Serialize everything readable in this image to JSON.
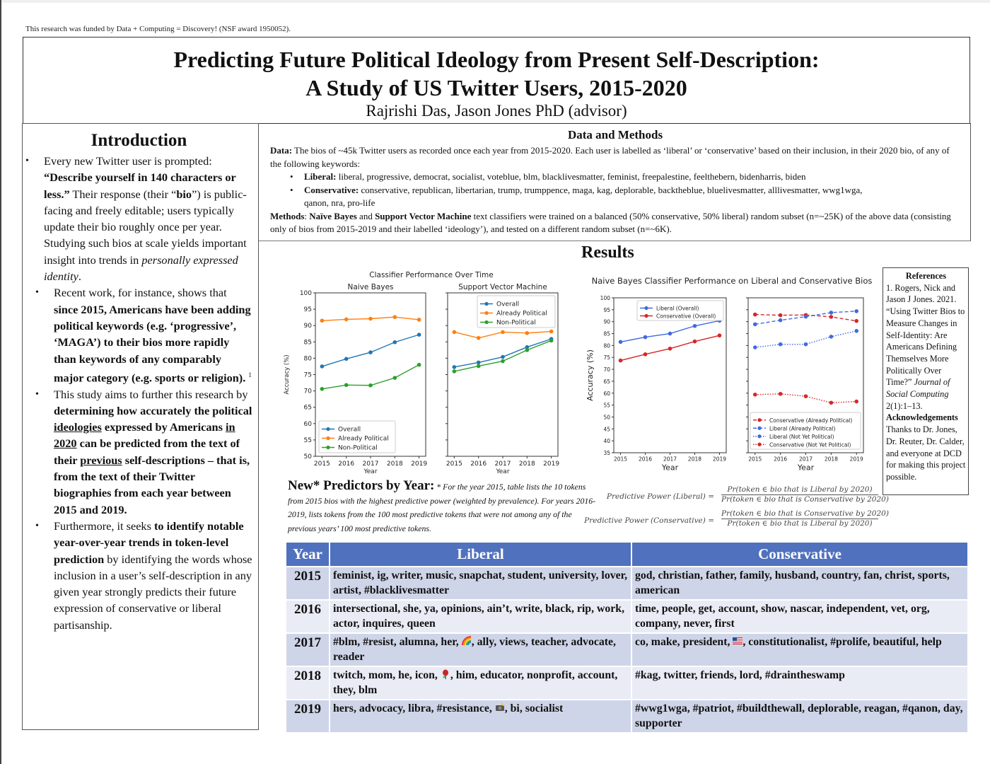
{
  "funding_note": "This research was funded by Data + Computing = Discovery!  (NSF award 1950052).",
  "header": {
    "title_line1": "Predicting Future Political Ideology from Present Self-Description:",
    "title_line2": "A Study of  US Twitter Users, 2015-2020",
    "authors": "Rajrishi Das, Jason Jones PhD (advisor)"
  },
  "introduction": {
    "title": "Introduction",
    "b1": {
      "t1": "Every new Twitter user is prompted: ",
      "b1": "“Describe yourself  in 140 characters or less.”",
      "t2": " Their response (their “",
      "b2": "bio",
      "t3": "”) is public-facing and freely editable; users typically update their bio roughly once per year. Studying such bios at scale yields important insight into trends in ",
      "i1": "personally expressed identity",
      "t4": "."
    },
    "b2": {
      "t1": "Recent work, for instance, shows that ",
      "b1": "since 2015, Americans have been adding political keywords (e.g. ‘progressive’, ‘MAGA’) to their bios more rapidly than keywords of  any comparably major category (e.g. sports or religion).",
      "sup": "1"
    },
    "b3": {
      "t1": "This study aims to further this research by ",
      "b1": "determining how accurately the political ",
      "u1": "ideologies",
      "b2": " expressed by Americans ",
      "u2": "in 2020",
      "b3": " can be predicted from the text of their ",
      "u3": "previous",
      "b4": " self-descriptions – that is, from the text of  their Twitter biographies from each year between 2015 and 2019."
    },
    "b4": {
      "t1": "Furthermore, it seeks ",
      "b1": "to identify notable year-over-year trends in token-level prediction",
      "t2": " by identifying the words whose inclusion in a user’s self-description in any given year strongly predicts their future expression of conservative or liberal partisanship."
    }
  },
  "data_methods": {
    "title": "Data and Methods",
    "data_label": "Data:",
    "data_text": " The bios of  ~45k Twitter users as recorded once each year from 2015-2020. Each user is labelled as ‘liberal’ or ‘conservative’ based on their inclusion, in their 2020 bio, of any of the following keywords:",
    "liberal_label": "Liberal:",
    "liberal_keywords": " liberal, progressive, democrat, socialist, voteblue, blm, blacklivesmatter, feminist, freepalestine, feelthebern, bidenharris, biden",
    "conservative_label": "Conservative:",
    "conservative_keywords": " conservative, republican, libertarian, trump, trumppence, maga, kag, deplorable, backtheblue, bluelivesmatter, alllivesmatter, wwg1wga,",
    "conservative_keywords_cont": "qanon, nra, pro-life",
    "methods_label": "Methods",
    "methods_t1": ": ",
    "methods_b1": "Naïve Bayes",
    "methods_t2": " and ",
    "methods_b2": "Support Vector Machine",
    "methods_t3": " text classifiers were trained on a balanced (50% conservative, 50% liberal) random subset (n=~25K) of the above data (consisting only of  bios from 2015-2019 and their labelled ‘ideology’), and tested on a different random subset (n=~6K)."
  },
  "results": {
    "title": "Results"
  },
  "chart_data": [
    {
      "type": "line",
      "title": "Classifier Performance Over Time",
      "subtitle": "Naive Bayes",
      "xlabel": "Year",
      "ylabel": "Accuracy (%)",
      "x": [
        2015,
        2016,
        2017,
        2018,
        2019
      ],
      "ylim": [
        50,
        100
      ],
      "yticks": [
        50,
        55,
        60,
        65,
        70,
        75,
        80,
        85,
        90,
        95,
        100
      ],
      "legend_position": "lower left",
      "grid": false,
      "series": [
        {
          "name": "Overall",
          "color": "#1f77b4",
          "style": "solid",
          "values": [
            77.5,
            79.8,
            81.8,
            84.9,
            87.2
          ]
        },
        {
          "name": "Already Political",
          "color": "#ff7f0e",
          "style": "solid",
          "values": [
            91.5,
            91.9,
            92.1,
            92.6,
            91.8
          ]
        },
        {
          "name": "Non-Political",
          "color": "#2ca02c",
          "style": "solid",
          "values": [
            70.6,
            71.8,
            71.7,
            74.0,
            78.0
          ]
        }
      ]
    },
    {
      "type": "line",
      "title": "Classifier Performance Over Time",
      "subtitle": "Support Vector Machine",
      "xlabel": "Year",
      "ylabel": "",
      "x": [
        2015,
        2016,
        2017,
        2018,
        2019
      ],
      "ylim": [
        50,
        100
      ],
      "legend_position": "upper right",
      "grid": false,
      "series": [
        {
          "name": "Overall",
          "color": "#1f77b4",
          "style": "solid",
          "values": [
            77.3,
            78.7,
            80.4,
            83.4,
            85.9
          ]
        },
        {
          "name": "Already Political",
          "color": "#ff7f0e",
          "style": "solid",
          "values": [
            88.0,
            86.2,
            88.0,
            87.7,
            88.2
          ]
        },
        {
          "name": "Non-Political",
          "color": "#2ca02c",
          "style": "solid",
          "values": [
            76.0,
            77.6,
            79.1,
            82.5,
            85.4
          ]
        }
      ]
    },
    {
      "type": "line",
      "title": "Naive Bayes Classifier Performance on Liberal and Conservative Bios",
      "xlabel": "Year",
      "ylabel": "Accuracy (%)",
      "x": [
        2015,
        2016,
        2017,
        2018,
        2019
      ],
      "ylim": [
        35,
        100
      ],
      "yticks": [
        35,
        40,
        45,
        50,
        55,
        60,
        65,
        70,
        75,
        80,
        85,
        90,
        95,
        100
      ],
      "legend_position": "upper right",
      "grid": false,
      "series": [
        {
          "name": "Liberal (Overall)",
          "color": "#4169e1",
          "style": "solid",
          "values": [
            81.5,
            83.5,
            85.0,
            88.2,
            90.4
          ]
        },
        {
          "name": "Conservative (Overall)",
          "color": "#d62728",
          "style": "solid",
          "values": [
            73.7,
            76.3,
            78.7,
            81.7,
            84.2
          ]
        }
      ]
    },
    {
      "type": "line",
      "title": "Naive Bayes Classifier Performance on Liberal and Conservative Bios",
      "xlabel": "Year",
      "ylabel": "",
      "x": [
        2015,
        2016,
        2017,
        2018,
        2019
      ],
      "ylim": [
        35,
        100
      ],
      "legend_position": "lower right",
      "grid": false,
      "series": [
        {
          "name": "Conservative (Already Political)",
          "color": "#d62728",
          "style": "dashed",
          "values": [
            93.0,
            92.7,
            92.8,
            92.0,
            90.3
          ]
        },
        {
          "name": "Liberal (Already Political)",
          "color": "#4169e1",
          "style": "dashed",
          "values": [
            88.9,
            90.6,
            92.1,
            93.8,
            94.4
          ]
        },
        {
          "name": "Liberal (Not Yet Political)",
          "color": "#4169e1",
          "style": "dotted",
          "values": [
            79.2,
            80.5,
            80.5,
            83.7,
            86.1
          ]
        },
        {
          "name": "Conservative (Not Yet Political)",
          "color": "#d62728",
          "style": "dotted",
          "values": [
            59.4,
            59.7,
            58.7,
            56.0,
            56.5
          ]
        }
      ]
    }
  ],
  "references": {
    "title": "References",
    "ref1_text": "1. Rogers, Nick and Jason J Jones. 2021. “Using Twitter Bios to Measure Changes in Self-Identity: Are Americans Defining Themselves More Politically Over Time?” ",
    "ref1_journal": "Journal of Social Computing",
    "ref1_tail": " 2(1):1–13.",
    "ack_title": "Acknowledgements",
    "ack_text": "Thanks to Dr. Jones, Dr. Reuter, Dr. Calder, and everyone at DCD for making this project possible."
  },
  "predictors": {
    "title": "New* Predictors by Year:",
    "note": " * For the year 2015, table lists the 10 tokens from 2015 bios with the highest predictive power (weighted by prevalence). For  years 2016-2019, lists tokens from the 100 most predictive tokens that were not among any of  the previous years’ 100 most predictive tokens."
  },
  "formulas": {
    "liberal_lhs": "Predictive Power (Liberal) =",
    "liberal_num": "Pr(token ∈ bio that is Liberal by 2020)",
    "liberal_den": "Pr(token ∈ bio that is Conservative by 2020)",
    "conservative_lhs": "Predictive Power (Conservative) =",
    "conservative_num": "Pr(token ∈ bio that is Conservative by 2020)",
    "conservative_den": "Pr(token ∈ bio that is Liberal by 2020)"
  },
  "table": {
    "headers": [
      "Year",
      "Liberal",
      "Conservative"
    ],
    "header_color": "#4f71be",
    "rows": [
      {
        "year": "2015",
        "liberal_a": "feminist, ig, writer, music, snapchat, student, university, lover, artist, #blacklivesmatter",
        "liberal_emoji": "",
        "liberal_b": "",
        "conservative_a": "god, christian, father, family, husband, country, fan, christ, sports, american",
        "conservative_emoji": "",
        "conservative_b": ""
      },
      {
        "year": "2016",
        "liberal_a": "intersectional, she, ya, opinions, ain’t, write, black, rip, work, actor, inquires, queen",
        "liberal_emoji": "",
        "liberal_b": "",
        "conservative_a": "time, people, get, account, show, nascar, independent, vet, org, company, never, first",
        "conservative_emoji": "",
        "conservative_b": ""
      },
      {
        "year": "2017",
        "liberal_a": "#blm, #resist, alumna, her, ",
        "liberal_emoji": "rainbow-emoji",
        "liberal_b": ", ally, views, teacher, advocate, reader",
        "conservative_a": "co, make, president, ",
        "conservative_emoji": "us-flag-emoji",
        "conservative_b": ", constitutionalist, #prolife, beautiful, help"
      },
      {
        "year": "2018",
        "liberal_a": "twitch, mom, he, icon, ",
        "liberal_emoji": "rose-emoji",
        "liberal_b": ", him, educator, nonprofit, account, they, blm",
        "conservative_a": "#kag, twitter, friends, lord, #draintheswamp",
        "conservative_emoji": "",
        "conservative_b": ""
      },
      {
        "year": "2019",
        "liberal_a": "hers, advocacy, libra, #resistance, ",
        "liberal_emoji": "camera-flash-emoji",
        "liberal_b": ", bi, socialist",
        "conservative_a": "#wwg1wga, #patriot, #buildthewall, deplorable, reagan, #qanon, day, supporter",
        "conservative_emoji": "",
        "conservative_b": ""
      }
    ]
  }
}
